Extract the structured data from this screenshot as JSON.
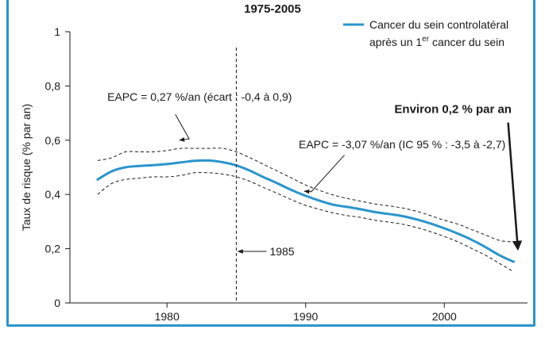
{
  "chart_data": {
    "type": "line",
    "title": "1975-2005",
    "ylabel": "Taux de risque (% par an)",
    "xlabel": "",
    "xlim": [
      1973,
      2006
    ],
    "ylim": [
      0,
      1
    ],
    "x_ticks": [
      1980,
      1990,
      2000
    ],
    "y_ticks": [
      {
        "value": 0,
        "label": "0"
      },
      {
        "value": 0.2,
        "label": "0,2"
      },
      {
        "value": 0.4,
        "label": "0,4"
      },
      {
        "value": 0.6,
        "label": "0,6"
      },
      {
        "value": 0.8,
        "label": "0,8"
      },
      {
        "value": 1,
        "label": "1"
      }
    ],
    "legend": {
      "position": "top-right",
      "line1": "Cancer du sein controlatéral",
      "line2_pre": "après un 1",
      "line2_sup": "er",
      "line2_post": " cancer du sein",
      "color": "#2b95cc"
    },
    "series": [
      {
        "name": "Cancer du sein controlatéral après un 1er cancer du sein",
        "color": "#2b95cc",
        "x": [
          1975,
          1976,
          1977,
          1978,
          1979,
          1980,
          1981,
          1982,
          1983,
          1984,
          1985,
          1986,
          1987,
          1988,
          1989,
          1990,
          1991,
          1992,
          1993,
          1994,
          1995,
          1996,
          1997,
          1998,
          1999,
          2000,
          2001,
          2002,
          2003,
          2004,
          2005
        ],
        "y": [
          0.455,
          0.485,
          0.5,
          0.505,
          0.508,
          0.512,
          0.518,
          0.524,
          0.525,
          0.519,
          0.507,
          0.487,
          0.463,
          0.44,
          0.416,
          0.395,
          0.377,
          0.362,
          0.354,
          0.345,
          0.335,
          0.328,
          0.32,
          0.308,
          0.293,
          0.275,
          0.255,
          0.232,
          0.205,
          0.175,
          0.152
        ]
      }
    ],
    "ci_upper": {
      "x": [
        1975,
        1976,
        1977,
        1978,
        1979,
        1980,
        1981,
        1982,
        1983,
        1984,
        1985,
        1986,
        1987,
        1988,
        1989,
        1990,
        1991,
        1992,
        1993,
        1994,
        1995,
        1996,
        1997,
        1998,
        1999,
        2000,
        2001,
        2002,
        2003,
        2004,
        2005
      ],
      "y": [
        0.525,
        0.535,
        0.557,
        0.557,
        0.557,
        0.562,
        0.57,
        0.57,
        0.57,
        0.57,
        0.557,
        0.535,
        0.51,
        0.485,
        0.46,
        0.435,
        0.415,
        0.398,
        0.385,
        0.375,
        0.365,
        0.358,
        0.35,
        0.338,
        0.322,
        0.305,
        0.29,
        0.27,
        0.25,
        0.23,
        0.225
      ]
    },
    "ci_lower": {
      "x": [
        1975,
        1976,
        1977,
        1978,
        1979,
        1980,
        1981,
        1982,
        1983,
        1984,
        1985,
        1986,
        1987,
        1988,
        1989,
        1990,
        1991,
        1992,
        1993,
        1994,
        1995,
        1996,
        1997,
        1998,
        1999,
        2000,
        2001,
        2002,
        2003,
        2004,
        2005
      ],
      "y": [
        0.4,
        0.44,
        0.455,
        0.46,
        0.465,
        0.465,
        0.47,
        0.48,
        0.48,
        0.475,
        0.465,
        0.448,
        0.425,
        0.403,
        0.38,
        0.36,
        0.345,
        0.332,
        0.322,
        0.315,
        0.305,
        0.298,
        0.29,
        0.278,
        0.263,
        0.245,
        0.225,
        0.2,
        0.175,
        0.145,
        0.115
      ]
    },
    "vline": {
      "x": 1985,
      "label": "1985",
      "label_y": 0.19
    },
    "annotations": [
      {
        "id": "eapc1",
        "text": "EAPC = 0,27 %/an (écart : -0,4 à 0,9)",
        "x": 1975.7,
        "y": 0.745,
        "arrow_from": [
          1975.9,
          0.0
        ],
        "arrow": [
          [
            1980.6,
            0.695
          ],
          [
            1981.6,
            0.605
          ],
          [
            1980.9,
            0.6
          ]
        ]
      },
      {
        "id": "eapc2",
        "text": "EAPC = -3,07 %/an (IC 95 % : -3,5 à -2,7)",
        "x": 1989.5,
        "y": 0.57,
        "arrow": [
          [
            1992.8,
            0.545
          ],
          [
            1990.4,
            0.41
          ],
          [
            1989.9,
            0.412
          ]
        ]
      },
      {
        "id": "environ",
        "text": "Environ 0,2 % par an",
        "x": 1996.4,
        "y": 0.7,
        "arrow": [
          [
            2004.6,
            0.665
          ],
          [
            2005.3,
            0.2
          ]
        ]
      }
    ]
  }
}
